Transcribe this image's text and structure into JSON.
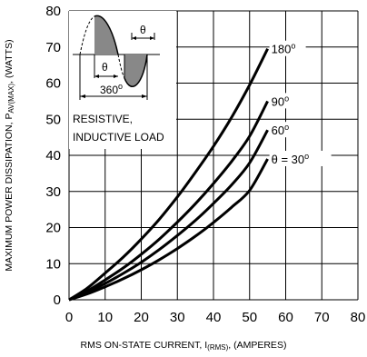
{
  "chart_data": {
    "type": "line",
    "ylabel": {
      "prefix": "MAXIMUM POWER DISSIPATION, P",
      "sub": "AV(MAX)",
      "suffix": ", (WATTS)"
    },
    "xlabel": {
      "prefix": "RMS ON-STATE CURRENT, I",
      "sub": "(RMS)",
      "suffix": ", (AMPERES)"
    },
    "xlim": [
      0,
      80
    ],
    "ylim": [
      0,
      80
    ],
    "xticks": [
      "0",
      "10",
      "20",
      "30",
      "40",
      "50",
      "60",
      "70",
      "80"
    ],
    "yticks": [
      "0",
      "10",
      "20",
      "30",
      "40",
      "50",
      "60",
      "70",
      "80"
    ],
    "grid": true,
    "series": [
      {
        "label": "180",
        "label_sup": "o",
        "x": [
          0,
          5,
          10,
          15,
          20,
          25,
          30,
          35,
          40,
          45,
          50,
          55
        ],
        "y": [
          0,
          3.2,
          7.4,
          11.8,
          16.8,
          22.3,
          28.5,
          35.3,
          42.5,
          50.5,
          59.5,
          69.5
        ]
      },
      {
        "label": "90",
        "label_sup": "o",
        "x": [
          0,
          5,
          10,
          15,
          20,
          25,
          30,
          35,
          40,
          45,
          50,
          55
        ],
        "y": [
          0,
          2.4,
          5.5,
          8.8,
          12.6,
          16.8,
          21.5,
          26.6,
          32.2,
          38.3,
          45.3,
          55
        ]
      },
      {
        "label": "60",
        "label_sup": "o",
        "x": [
          0,
          5,
          10,
          15,
          20,
          25,
          30,
          35,
          40,
          45,
          50,
          55
        ],
        "y": [
          0,
          2,
          4.5,
          7.3,
          10.4,
          13.9,
          17.8,
          22,
          26.7,
          31.8,
          37.9,
          47
        ]
      },
      {
        "label": "θ = 30",
        "label_sup": "o",
        "x": [
          0,
          5,
          10,
          15,
          20,
          25,
          30,
          35,
          40,
          45,
          50,
          55
        ],
        "y": [
          0,
          1.6,
          3.6,
          5.8,
          8.3,
          11.1,
          14.2,
          17.6,
          21.4,
          25.6,
          30.3,
          39
        ]
      }
    ],
    "inset": {
      "theta_top": "θ",
      "theta_mid": "θ",
      "period": "360",
      "period_sup": "o",
      "load_line1": "RESISTIVE,",
      "load_line2": "INDUCTIVE LOAD"
    }
  }
}
